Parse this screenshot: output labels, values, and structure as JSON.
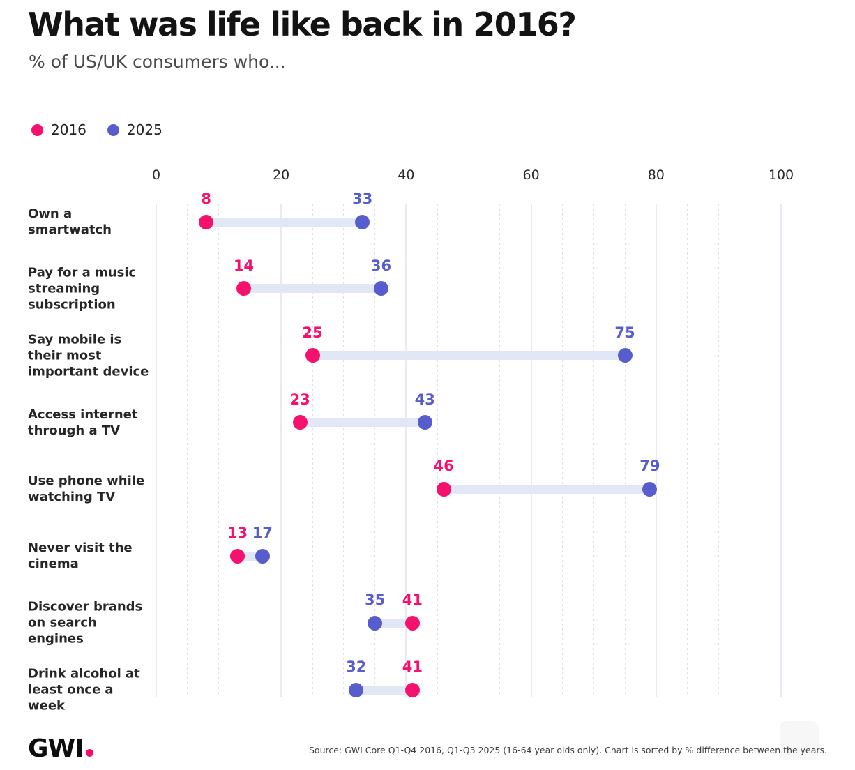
{
  "title": "What was life like back in 2016?",
  "subtitle": "% of US/UK consumers who...",
  "logo": {
    "text": "GWI",
    "dot_color": "#FF0A6C"
  },
  "source_note": "Source: GWI Core Q1-Q4 2016, Q1-Q3 2025 (16-64 year olds only). Chart is sorted by % difference between the years.",
  "colors": {
    "pink_2016": "#F5116D",
    "blue_2025": "#585DCE",
    "connector_bar": "#E1E7F4",
    "grid_major": "#EAEAF3",
    "grid_minor": "#DFE0EC",
    "title_text": "#131313",
    "subtitle_text": "#4B4B4B"
  },
  "chart_data": {
    "type": "dumbbell",
    "title": "What was life like back in 2016?",
    "subtitle": "% of US/UK consumers who...",
    "categories": [
      "Own a smartwatch",
      "Pay for a music streaming subscription",
      "Say mobile is their most important device",
      "Access internet through a TV",
      "Use phone while watching TV",
      "Never visit the cinema",
      "Discover brands on search engines",
      "Drink alcohol at least once a week"
    ],
    "series": [
      {
        "name": "2016",
        "color": "#F5116D",
        "values": [
          8,
          14,
          25,
          23,
          46,
          13,
          41,
          41
        ]
      },
      {
        "name": "2025",
        "color": "#585DCE",
        "values": [
          33,
          36,
          75,
          43,
          79,
          17,
          35,
          32
        ]
      }
    ],
    "x_axis": {
      "range": [
        0,
        100
      ],
      "major_ticks": [
        0,
        20,
        40,
        60,
        80,
        100
      ],
      "minor_tick_step": 5,
      "grid": "major ticks solid, minor ticks dashed"
    },
    "orientation": "horizontal",
    "legend_position": "top-left",
    "value_labels": "above each dot",
    "sort_note": "sorted by % difference between the years"
  }
}
